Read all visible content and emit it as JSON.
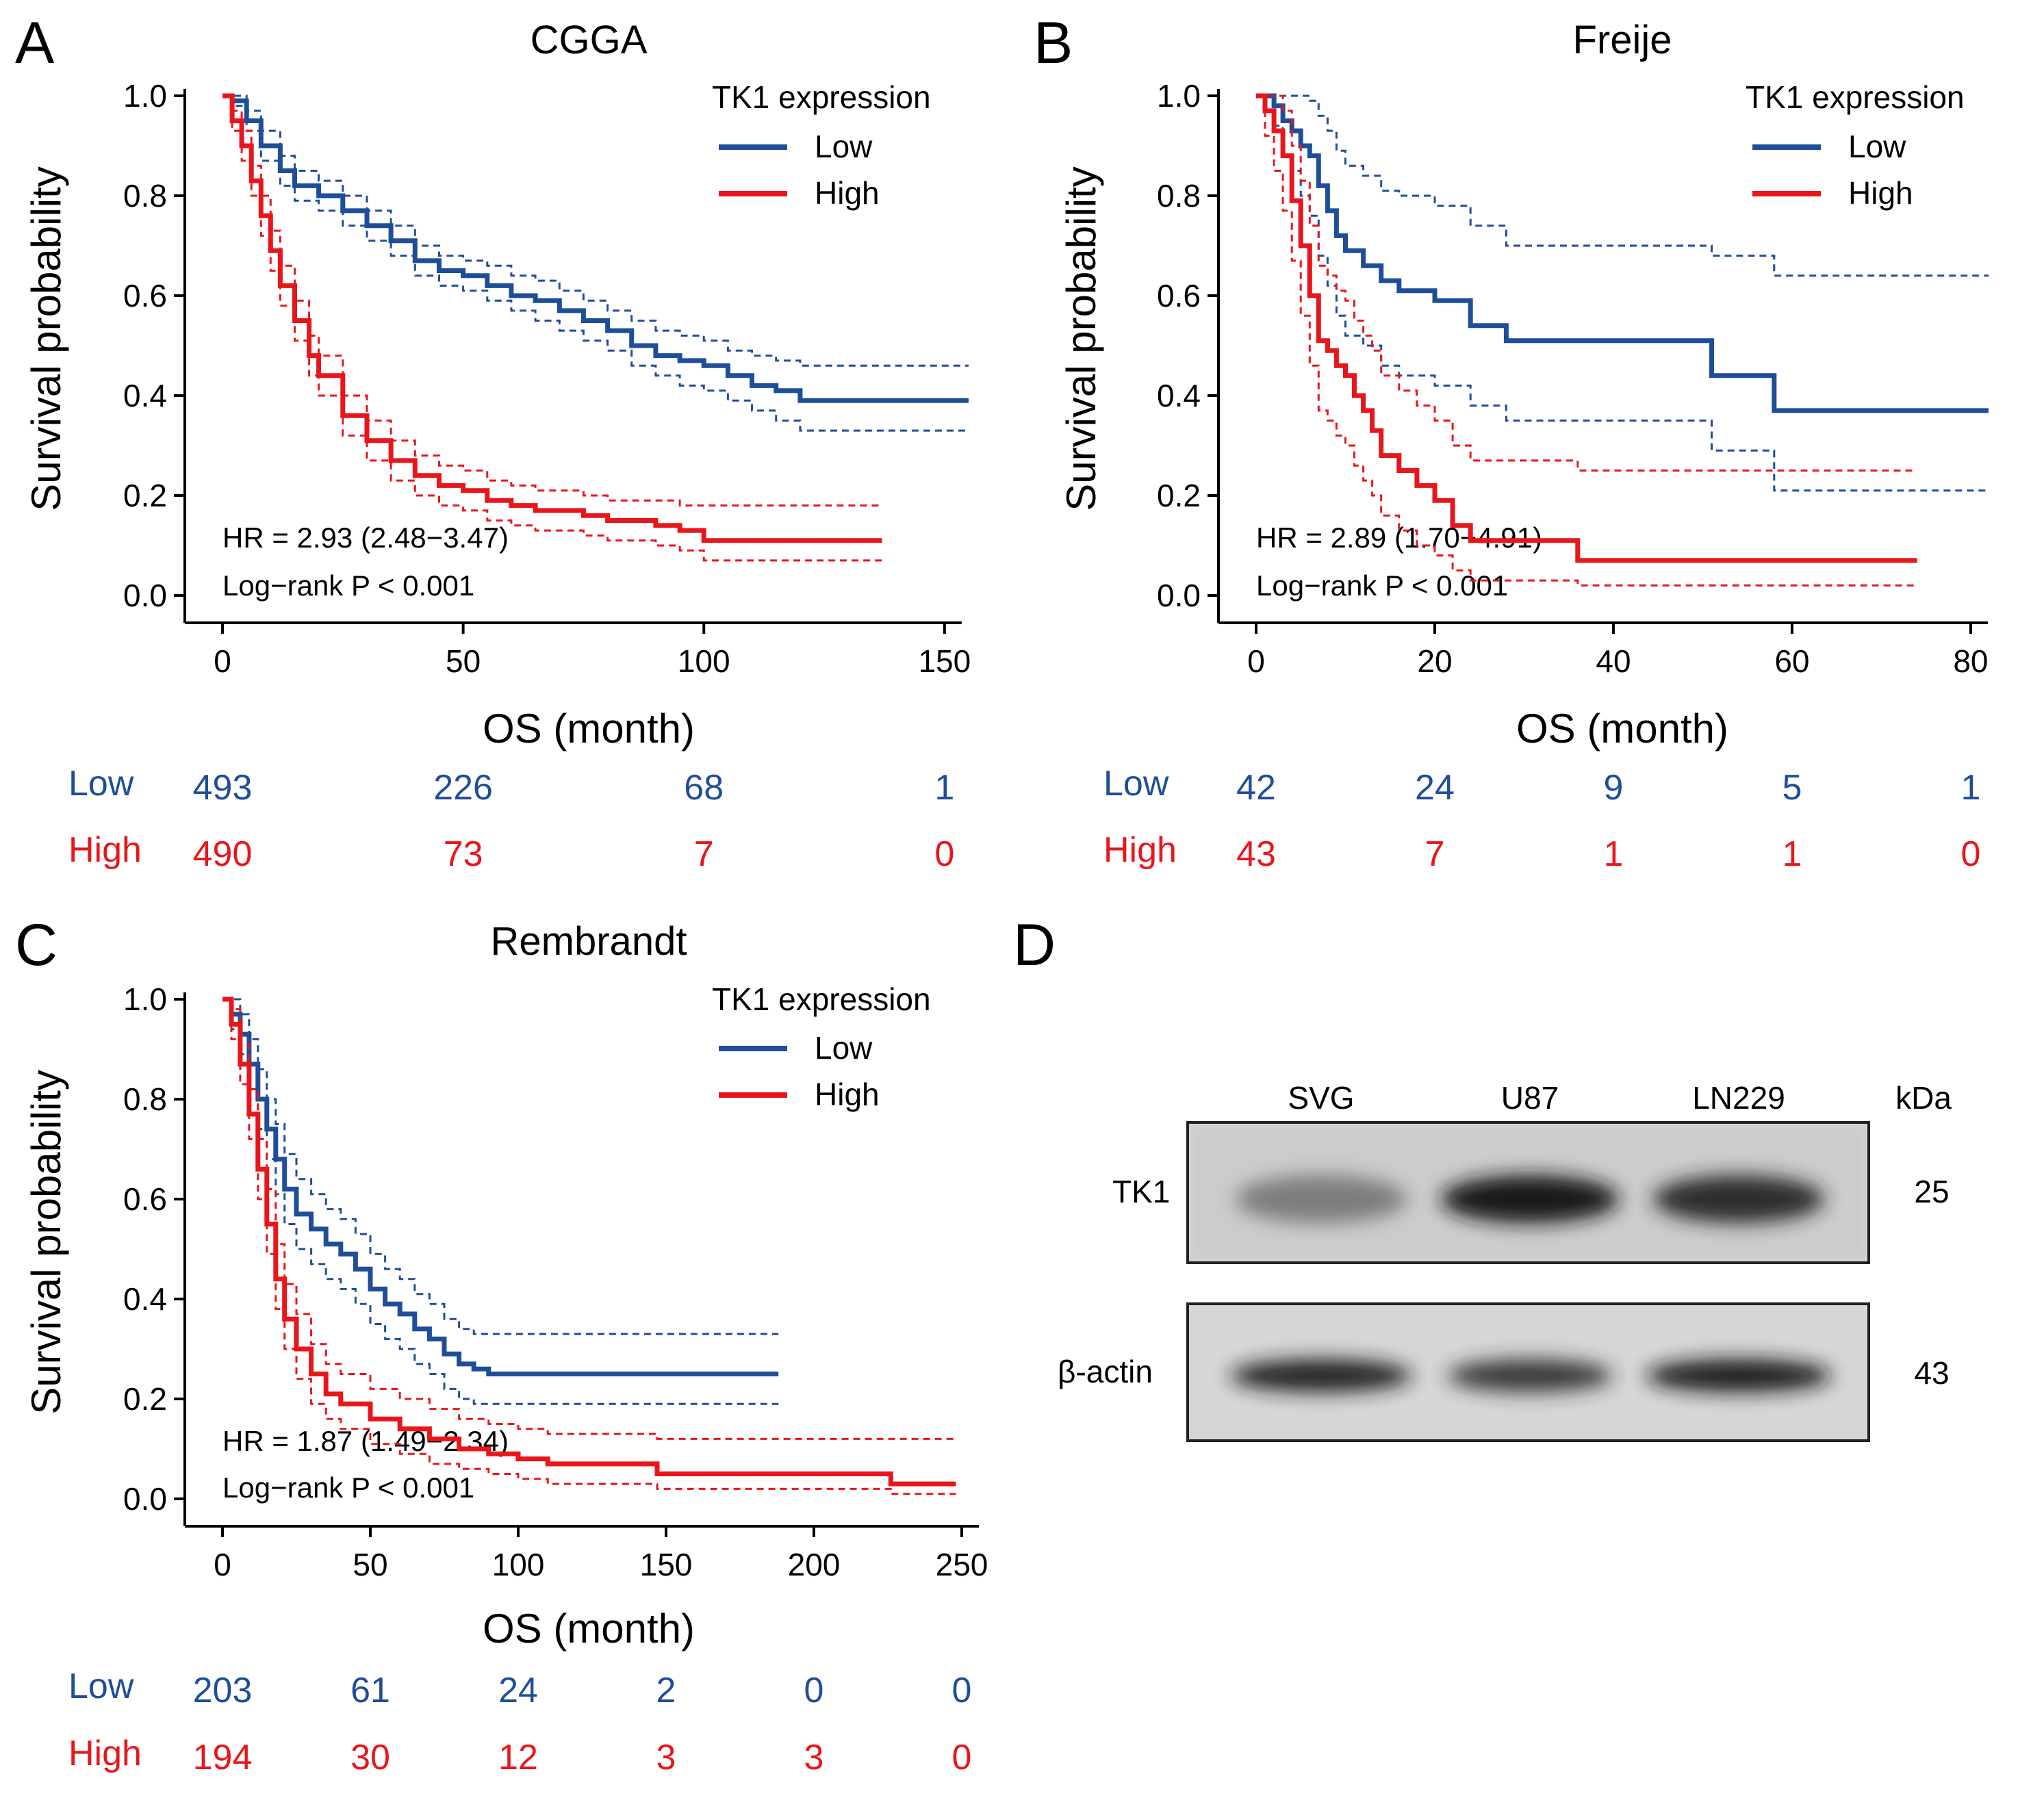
{
  "figure": {
    "panels": [
      {
        "letter": "A"
      },
      {
        "letter": "B"
      },
      {
        "letter": "C"
      },
      {
        "letter": "D"
      }
    ]
  },
  "colors": {
    "low": "#1f4e99",
    "high": "#e8161b",
    "axis": "#000000"
  },
  "chart_data": [
    {
      "type": "line",
      "panel": "A",
      "title": "CGGA",
      "xlabel": "OS (month)",
      "ylabel": "Survival probability",
      "xlim": [
        0,
        155
      ],
      "ylim": [
        0,
        1
      ],
      "xticks": [
        0,
        50,
        100,
        150
      ],
      "yticks": [
        0.0,
        0.2,
        0.4,
        0.6,
        0.8,
        1.0
      ],
      "ytick_labels": [
        "0.0",
        "0.2",
        "0.4",
        "0.6",
        "0.8",
        "1.0"
      ],
      "legend": {
        "title": "TK1 expression",
        "items": [
          "Low",
          "High"
        ],
        "position": "top-right"
      },
      "annotations": [
        "HR = 2.93 (2.48−3.47)",
        "Log−rank P < 0.001"
      ],
      "series": [
        {
          "name": "Low",
          "x": [
            0,
            2,
            5,
            8,
            12,
            15,
            20,
            25,
            30,
            35,
            40,
            45,
            50,
            55,
            60,
            65,
            70,
            75,
            80,
            85,
            90,
            95,
            100,
            105,
            110,
            115,
            120,
            125,
            130,
            140,
            150,
            155
          ],
          "y": [
            1.0,
            0.99,
            0.95,
            0.9,
            0.85,
            0.82,
            0.8,
            0.77,
            0.74,
            0.71,
            0.67,
            0.65,
            0.64,
            0.62,
            0.6,
            0.59,
            0.57,
            0.55,
            0.53,
            0.5,
            0.48,
            0.47,
            0.46,
            0.44,
            0.42,
            0.41,
            0.39,
            0.39,
            0.39,
            0.39,
            0.39,
            0.39
          ],
          "upper": [
            1.0,
            1.0,
            0.97,
            0.93,
            0.88,
            0.85,
            0.83,
            0.8,
            0.77,
            0.74,
            0.7,
            0.68,
            0.67,
            0.66,
            0.64,
            0.63,
            0.61,
            0.59,
            0.57,
            0.55,
            0.53,
            0.52,
            0.51,
            0.49,
            0.48,
            0.47,
            0.46,
            0.46,
            0.46,
            0.46,
            0.46,
            0.46
          ],
          "lower": [
            1.0,
            0.98,
            0.93,
            0.87,
            0.82,
            0.79,
            0.77,
            0.74,
            0.71,
            0.68,
            0.64,
            0.62,
            0.61,
            0.59,
            0.57,
            0.55,
            0.53,
            0.51,
            0.49,
            0.46,
            0.44,
            0.42,
            0.41,
            0.39,
            0.37,
            0.35,
            0.33,
            0.33,
            0.33,
            0.33,
            0.33,
            0.33
          ]
        },
        {
          "name": "High",
          "x": [
            0,
            2,
            4,
            6,
            8,
            10,
            12,
            15,
            18,
            20,
            25,
            30,
            35,
            40,
            45,
            50,
            55,
            60,
            65,
            70,
            75,
            80,
            85,
            90,
            95,
            100,
            105,
            110,
            120,
            130,
            137
          ],
          "y": [
            1.0,
            0.95,
            0.9,
            0.83,
            0.76,
            0.69,
            0.62,
            0.55,
            0.48,
            0.44,
            0.36,
            0.31,
            0.27,
            0.24,
            0.22,
            0.21,
            0.19,
            0.18,
            0.17,
            0.17,
            0.16,
            0.15,
            0.15,
            0.14,
            0.13,
            0.11,
            0.11,
            0.11,
            0.11,
            0.11,
            0.11
          ],
          "upper": [
            1.0,
            0.97,
            0.93,
            0.86,
            0.8,
            0.73,
            0.66,
            0.59,
            0.52,
            0.48,
            0.4,
            0.35,
            0.31,
            0.28,
            0.26,
            0.25,
            0.23,
            0.22,
            0.21,
            0.21,
            0.2,
            0.19,
            0.19,
            0.19,
            0.18,
            0.18,
            0.18,
            0.18,
            0.18,
            0.18,
            0.18
          ],
          "lower": [
            1.0,
            0.93,
            0.87,
            0.8,
            0.72,
            0.65,
            0.58,
            0.51,
            0.44,
            0.4,
            0.32,
            0.27,
            0.23,
            0.2,
            0.18,
            0.17,
            0.15,
            0.14,
            0.13,
            0.13,
            0.12,
            0.11,
            0.11,
            0.1,
            0.09,
            0.07,
            0.07,
            0.07,
            0.07,
            0.07,
            0.07
          ]
        }
      ],
      "risk_table": {
        "rows": [
          {
            "label": "Low",
            "values": [
              "493",
              "226",
              "68",
              "1"
            ]
          },
          {
            "label": "High",
            "values": [
              "490",
              "73",
              "7",
              "0"
            ]
          }
        ]
      }
    },
    {
      "type": "line",
      "panel": "B",
      "title": "Freije",
      "xlabel": "OS (month)",
      "ylabel": "Survival probability",
      "xlim": [
        0,
        82
      ],
      "ylim": [
        0,
        1
      ],
      "xticks": [
        0,
        20,
        40,
        60,
        80
      ],
      "yticks": [
        0.0,
        0.2,
        0.4,
        0.6,
        0.8,
        1.0
      ],
      "ytick_labels": [
        "0.0",
        "0.2",
        "0.4",
        "0.6",
        "0.8",
        "1.0"
      ],
      "legend": {
        "title": "TK1 expression",
        "items": [
          "Low",
          "High"
        ],
        "position": "top-right"
      },
      "annotations": [
        "HR = 2.89 (1.70−4.91)",
        "Log−rank P < 0.001"
      ],
      "series": [
        {
          "name": "Low",
          "x": [
            0,
            1,
            2,
            3,
            4,
            5,
            6,
            7,
            8,
            9,
            10,
            12,
            14,
            16,
            20,
            24,
            28,
            36,
            51,
            58,
            82
          ],
          "y": [
            1.0,
            1.0,
            0.98,
            0.95,
            0.93,
            0.9,
            0.88,
            0.82,
            0.77,
            0.72,
            0.69,
            0.66,
            0.63,
            0.61,
            0.59,
            0.54,
            0.51,
            0.51,
            0.44,
            0.37,
            0.37
          ],
          "upper": [
            1.0,
            1.0,
            1.0,
            1.0,
            1.0,
            1.0,
            0.99,
            0.96,
            0.93,
            0.89,
            0.86,
            0.84,
            0.81,
            0.8,
            0.78,
            0.74,
            0.7,
            0.7,
            0.68,
            0.64,
            0.64
          ],
          "lower": [
            1.0,
            1.0,
            0.94,
            0.88,
            0.85,
            0.8,
            0.76,
            0.68,
            0.62,
            0.56,
            0.52,
            0.5,
            0.46,
            0.44,
            0.42,
            0.38,
            0.35,
            0.35,
            0.29,
            0.21,
            0.21
          ]
        },
        {
          "name": "High",
          "x": [
            0,
            1,
            2,
            3,
            4,
            5,
            6,
            7,
            8,
            9,
            10,
            11,
            12,
            13,
            14,
            16,
            18,
            20,
            22,
            24,
            30,
            36,
            74
          ],
          "y": [
            1.0,
            0.97,
            0.93,
            0.88,
            0.79,
            0.7,
            0.6,
            0.51,
            0.49,
            0.46,
            0.44,
            0.4,
            0.37,
            0.33,
            0.28,
            0.25,
            0.22,
            0.19,
            0.14,
            0.11,
            0.11,
            0.07,
            0.07
          ],
          "upper": [
            1.0,
            1.0,
            1.0,
            0.97,
            0.9,
            0.83,
            0.74,
            0.66,
            0.64,
            0.61,
            0.59,
            0.55,
            0.52,
            0.49,
            0.44,
            0.41,
            0.38,
            0.35,
            0.3,
            0.27,
            0.27,
            0.25,
            0.25
          ],
          "lower": [
            1.0,
            0.92,
            0.85,
            0.77,
            0.67,
            0.56,
            0.46,
            0.37,
            0.35,
            0.32,
            0.3,
            0.26,
            0.23,
            0.2,
            0.16,
            0.13,
            0.1,
            0.08,
            0.05,
            0.03,
            0.03,
            0.02,
            0.02
          ]
        }
      ],
      "risk_table": {
        "rows": [
          {
            "label": "Low",
            "values": [
              "42",
              "24",
              "9",
              "5",
              "1"
            ]
          },
          {
            "label": "High",
            "values": [
              "43",
              "7",
              "1",
              "1",
              "0"
            ]
          }
        ]
      }
    },
    {
      "type": "line",
      "panel": "C",
      "title": "Rembrandt",
      "xlabel": "OS (month)",
      "ylabel": "Survival probability",
      "xlim": [
        0,
        250
      ],
      "ylim": [
        0,
        1
      ],
      "xticks": [
        0,
        50,
        100,
        150,
        200,
        250
      ],
      "yticks": [
        0.0,
        0.2,
        0.4,
        0.6,
        0.8,
        1.0
      ],
      "ytick_labels": [
        "0.0",
        "0.2",
        "0.4",
        "0.6",
        "0.8",
        "1.0"
      ],
      "legend": {
        "title": "TK1 expression",
        "items": [
          "Low",
          "High"
        ],
        "position": "top-right"
      },
      "annotations": [
        "HR = 1.87 (1.49−2.34)",
        "Log−rank P < 0.001"
      ],
      "series": [
        {
          "name": "Low",
          "x": [
            0,
            3,
            6,
            9,
            12,
            15,
            18,
            21,
            25,
            30,
            35,
            40,
            45,
            50,
            55,
            60,
            65,
            70,
            75,
            80,
            85,
            90,
            95,
            100,
            120,
            150,
            188
          ],
          "y": [
            1.0,
            0.97,
            0.93,
            0.87,
            0.8,
            0.74,
            0.68,
            0.62,
            0.57,
            0.54,
            0.51,
            0.49,
            0.46,
            0.42,
            0.39,
            0.37,
            0.34,
            0.32,
            0.29,
            0.27,
            0.26,
            0.25,
            0.25,
            0.25,
            0.25,
            0.25,
            0.25
          ],
          "upper": [
            1.0,
            1.0,
            0.97,
            0.92,
            0.86,
            0.8,
            0.75,
            0.69,
            0.64,
            0.61,
            0.58,
            0.56,
            0.53,
            0.49,
            0.46,
            0.44,
            0.41,
            0.39,
            0.36,
            0.34,
            0.33,
            0.33,
            0.33,
            0.33,
            0.33,
            0.33,
            0.33
          ],
          "lower": [
            1.0,
            0.94,
            0.89,
            0.82,
            0.74,
            0.68,
            0.61,
            0.55,
            0.5,
            0.47,
            0.44,
            0.42,
            0.39,
            0.35,
            0.32,
            0.3,
            0.27,
            0.25,
            0.22,
            0.2,
            0.19,
            0.19,
            0.19,
            0.19,
            0.19,
            0.19,
            0.19
          ]
        },
        {
          "name": "High",
          "x": [
            0,
            3,
            6,
            9,
            12,
            15,
            18,
            21,
            25,
            30,
            35,
            40,
            50,
            60,
            70,
            80,
            90,
            100,
            110,
            120,
            147,
            180,
            200,
            226,
            248
          ],
          "y": [
            1.0,
            0.95,
            0.87,
            0.77,
            0.66,
            0.55,
            0.44,
            0.36,
            0.3,
            0.25,
            0.21,
            0.19,
            0.16,
            0.14,
            0.12,
            0.1,
            0.09,
            0.08,
            0.07,
            0.07,
            0.05,
            0.05,
            0.05,
            0.03,
            0.03
          ],
          "upper": [
            1.0,
            0.98,
            0.91,
            0.82,
            0.72,
            0.62,
            0.51,
            0.43,
            0.37,
            0.31,
            0.27,
            0.25,
            0.22,
            0.2,
            0.18,
            0.16,
            0.15,
            0.14,
            0.13,
            0.13,
            0.12,
            0.12,
            0.12,
            0.12,
            0.12
          ],
          "lower": [
            1.0,
            0.92,
            0.83,
            0.72,
            0.6,
            0.49,
            0.38,
            0.3,
            0.24,
            0.19,
            0.16,
            0.14,
            0.11,
            0.09,
            0.07,
            0.06,
            0.05,
            0.04,
            0.03,
            0.03,
            0.02,
            0.02,
            0.02,
            0.01,
            0.01
          ]
        }
      ],
      "risk_table": {
        "rows": [
          {
            "label": "Low",
            "values": [
              "203",
              "61",
              "24",
              "2",
              "0",
              "0"
            ]
          },
          {
            "label": "High",
            "values": [
              "194",
              "30",
              "12",
              "3",
              "3",
              "0"
            ]
          }
        ]
      }
    }
  ],
  "western_blot": {
    "lanes": [
      "SVG",
      "U87",
      "LN229"
    ],
    "unit": "kDa",
    "blots": [
      {
        "protein": "TK1",
        "mw": "25",
        "intensity": [
          0.45,
          0.95,
          0.85
        ]
      },
      {
        "protein": "β-actin",
        "mw": "43",
        "intensity": [
          0.9,
          0.8,
          0.92
        ]
      }
    ]
  }
}
